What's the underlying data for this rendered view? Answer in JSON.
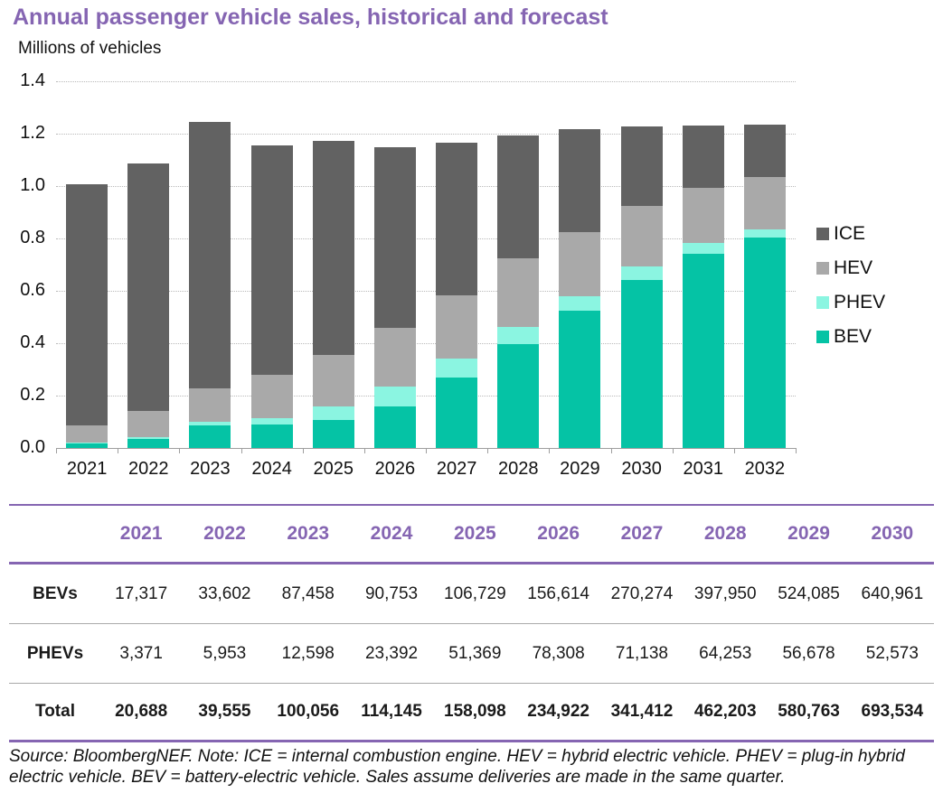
{
  "title": "Annual passenger vehicle sales, historical and forecast",
  "subtitle": "Millions of vehicles",
  "colors": {
    "purple": "#8565B2",
    "ice": "#626262",
    "hev": "#A9A9A9",
    "phev": "#8BF5E1",
    "bev": "#05C3A5",
    "grid": "#b9b9b9",
    "axis": "#9e9e9e",
    "row_separator": "#a9a9a9"
  },
  "chart_data": {
    "type": "bar",
    "stacked": true,
    "title": "Annual passenger vehicle sales, historical and forecast",
    "ylabel": "Millions of vehicles",
    "xlabel": "",
    "ylim": [
      0,
      1.4
    ],
    "yticks": [
      "1.4",
      "1.2",
      "1.0",
      "0.8",
      "0.6",
      "0.4",
      "0.2",
      "0.0"
    ],
    "grid": true,
    "legend_position": "right",
    "legend_order": [
      "ICE",
      "HEV",
      "PHEV",
      "BEV"
    ],
    "categories": [
      "2021",
      "2022",
      "2023",
      "2024",
      "2025",
      "2026",
      "2027",
      "2028",
      "2029",
      "2030",
      "2031",
      "2032"
    ],
    "series": [
      {
        "name": "BEV",
        "color_key": "bev",
        "values": [
          0.017,
          0.034,
          0.087,
          0.091,
          0.107,
          0.157,
          0.27,
          0.398,
          0.524,
          0.641,
          0.742,
          0.805
        ]
      },
      {
        "name": "PHEV",
        "color_key": "phev",
        "values": [
          0.003,
          0.006,
          0.013,
          0.023,
          0.051,
          0.078,
          0.071,
          0.064,
          0.057,
          0.053,
          0.04,
          0.028
        ]
      },
      {
        "name": "HEV",
        "color_key": "hev",
        "values": [
          0.066,
          0.101,
          0.126,
          0.166,
          0.197,
          0.223,
          0.242,
          0.261,
          0.244,
          0.231,
          0.211,
          0.2
        ]
      },
      {
        "name": "ICE",
        "color_key": "ice",
        "values": [
          0.921,
          0.947,
          1.018,
          0.876,
          0.819,
          0.69,
          0.583,
          0.469,
          0.394,
          0.302,
          0.238,
          0.2
        ]
      }
    ]
  },
  "table": {
    "years": [
      "2021",
      "2022",
      "2023",
      "2024",
      "2025",
      "2026",
      "2027",
      "2028",
      "2029",
      "2030"
    ],
    "rows": [
      {
        "label": "BEVs",
        "bold": false,
        "values": [
          "17,317",
          "33,602",
          "87,458",
          "90,753",
          "106,729",
          "156,614",
          "270,274",
          "397,950",
          "524,085",
          "640,961"
        ]
      },
      {
        "label": "PHEVs",
        "bold": false,
        "values": [
          "3,371",
          "5,953",
          "12,598",
          "23,392",
          "51,369",
          "78,308",
          "71,138",
          "64,253",
          "56,678",
          "52,573"
        ]
      },
      {
        "label": "Total",
        "bold": true,
        "values": [
          "20,688",
          "39,555",
          "100,056",
          "114,145",
          "158,098",
          "234,922",
          "341,412",
          "462,203",
          "580,763",
          "693,534"
        ]
      }
    ]
  },
  "footer": {
    "note": "Source: BloombergNEF. Note: ICE = internal combustion engine. HEV = hybrid electric vehicle. PHEV = plug-in hybrid electric vehicle. BEV = battery-electric vehicle. Sales assume deliveries are made in the same quarter."
  }
}
